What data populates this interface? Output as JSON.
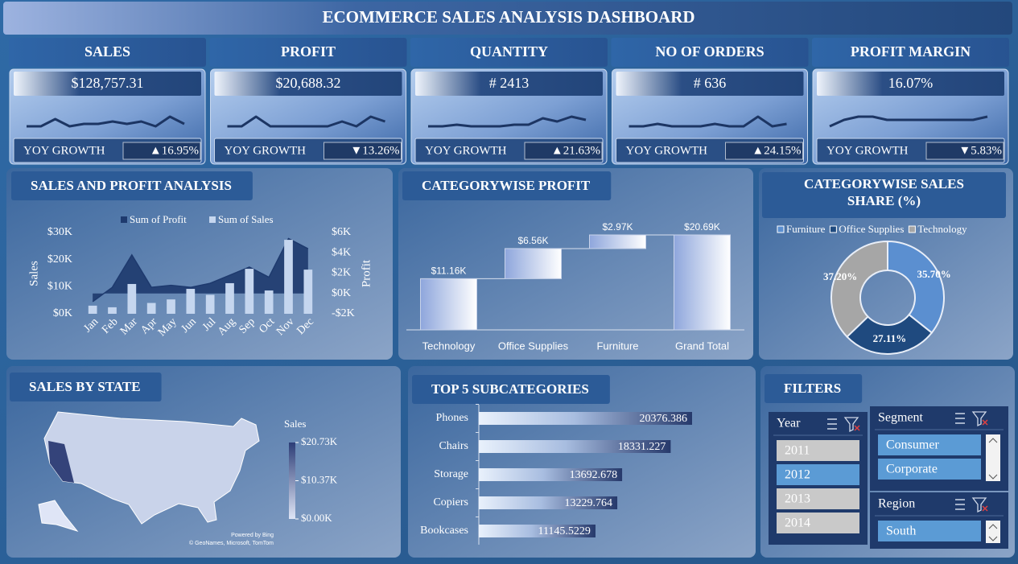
{
  "title": "ECOMMERCE SALES ANALYSIS DASHBOARD",
  "kpis": [
    {
      "label": "SALES",
      "value": "$128,757.31",
      "trend": [
        1,
        1,
        4,
        1,
        2,
        2,
        3,
        2,
        3,
        1,
        5,
        2
      ],
      "growth_label": "YOY GROWTH",
      "growth": "▲16.95%",
      "growth_color": "#3df03d"
    },
    {
      "label": "PROFIT",
      "value": "$20,688.32",
      "trend": [
        3,
        3,
        5,
        3,
        3,
        3,
        3,
        3,
        4,
        3,
        5,
        4
      ],
      "growth_label": "YOY GROWTH",
      "growth": "▼13.26%",
      "growth_color": "#e52020"
    },
    {
      "label": "QUANTITY",
      "value": "# 2413",
      "trend": [
        2,
        2,
        3,
        2,
        2,
        2,
        3,
        3,
        7,
        5,
        8,
        6
      ],
      "growth_label": "YOY GROWTH",
      "growth": "▲21.63%",
      "growth_color": "#3df03d"
    },
    {
      "label": "NO OF ORDERS",
      "value": "# 636",
      "trend": [
        2,
        2,
        3,
        2,
        2,
        2,
        3,
        2,
        2,
        6,
        2,
        3
      ],
      "growth_label": "YOY GROWTH",
      "growth": "▲24.15%",
      "growth_color": "#3df03d"
    },
    {
      "label": "PROFIT MARGIN",
      "value": "16.07%",
      "trend": [
        3,
        5,
        6,
        6,
        5,
        5,
        5,
        5,
        5,
        5,
        5,
        6
      ],
      "growth_label": "YOY GROWTH",
      "growth": "▼5.83%",
      "growth_color": "#e52020"
    }
  ],
  "chart_data": [
    {
      "type": "combo",
      "title": "SALES AND PROFIT ANALYSIS",
      "categories": [
        "Jan",
        "Feb",
        "Mar",
        "Apr",
        "May",
        "Jun",
        "Jul",
        "Aug",
        "Sep",
        "Oct",
        "Nov",
        "Dec"
      ],
      "series": [
        {
          "name": "Sum of Profit",
          "color": "#1e3a6e",
          "kind": "area",
          "axis": "y2",
          "values": [
            -800,
            600,
            3800,
            600,
            800,
            600,
            1000,
            1800,
            2600,
            1600,
            5400,
            4400
          ]
        },
        {
          "name": "Sum of Sales",
          "color": "#c5d6ef",
          "kind": "bar",
          "values": [
            3000,
            2400,
            11000,
            4000,
            5300,
            9200,
            7000,
            11300,
            16600,
            8600,
            27300,
            16300
          ]
        }
      ],
      "ylabel": "Sales",
      "y2label": "Profit",
      "ylim": [
        0,
        30000
      ],
      "yticks": [
        {
          "value": 0,
          "label": "$0K"
        },
        {
          "value": 10000,
          "label": "$10K"
        },
        {
          "value": 20000,
          "label": "$20K"
        },
        {
          "value": 30000,
          "label": "$30K"
        }
      ],
      "y2lim": [
        -2000,
        6000
      ],
      "y2ticks": [
        {
          "value": -2000,
          "label": "-$2K"
        },
        {
          "value": 0,
          "label": "$0K"
        },
        {
          "value": 2000,
          "label": "$2K"
        },
        {
          "value": 4000,
          "label": "$4K"
        },
        {
          "value": 6000,
          "label": "$6K"
        }
      ]
    },
    {
      "type": "waterfall",
      "title": "CATEGORYWISE PROFIT",
      "categories": [
        "Technology",
        "Office Supplies",
        "Furniture",
        "Grand Total"
      ],
      "values": [
        11160,
        6560,
        2970,
        20690
      ],
      "value_labels": [
        "$11.16K",
        "$6.56K",
        "$2.97K",
        "$20.69K"
      ]
    },
    {
      "type": "pie",
      "title": "CATEGORYWISE SALES SHARE (%)",
      "categories": [
        "Furniture",
        "Office Supplies",
        "Technology"
      ],
      "values": [
        35.7,
        27.11,
        37.2
      ],
      "value_labels": [
        "35.70%",
        "27.11%",
        "37.20%"
      ],
      "colors": [
        "#5b8fd0",
        "#1f4a7f",
        "#a6a6a6"
      ]
    },
    {
      "type": "map",
      "title": "SALES BY STATE",
      "legend_title": "Sales",
      "clim": [
        0,
        20730
      ],
      "cticks": [
        {
          "value": 20730,
          "label": "$20.73K"
        },
        {
          "value": 10370,
          "label": "$10.37K"
        },
        {
          "value": 0,
          "label": "$0.00K"
        }
      ],
      "colors": [
        "#dfe5f6",
        "#2c3d77"
      ],
      "attribution": [
        "Powered by Bing",
        "© GeoNames, Microsoft, TomTom"
      ]
    },
    {
      "type": "barh",
      "title": "TOP 5 SUBCATEGORIES",
      "categories": [
        "Phones",
        "Chairs",
        "Storage",
        "Copiers",
        "Bookcases"
      ],
      "values": [
        20376.386,
        18331.227,
        13692.678,
        13229.764,
        11145.5229
      ]
    }
  ],
  "filters": {
    "title": "FILTERS",
    "slicers": [
      {
        "title": "Year",
        "items": [
          "2011",
          "2012",
          "2013",
          "2014"
        ],
        "selected": [
          1
        ]
      },
      {
        "title": "Segment",
        "items": [
          "Consumer",
          "Corporate"
        ],
        "selected": [
          0,
          1
        ]
      },
      {
        "title": "Region",
        "items": [
          "South"
        ],
        "selected": [
          0
        ]
      }
    ]
  }
}
